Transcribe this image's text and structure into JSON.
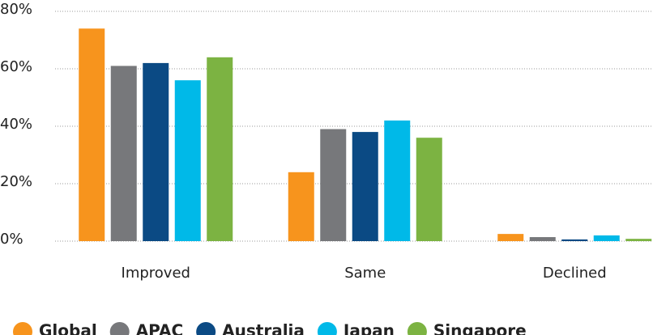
{
  "chart_data": {
    "type": "bar",
    "categories": [
      "Improved",
      "Same",
      "Declined"
    ],
    "series": [
      {
        "name": "Global",
        "color": "#f7941d",
        "values": [
          74,
          24,
          2.5
        ]
      },
      {
        "name": "APAC",
        "color": "#77787b",
        "values": [
          61,
          39,
          1.4
        ]
      },
      {
        "name": "Australia",
        "color": "#0b4a84",
        "values": [
          62,
          38,
          0.6
        ]
      },
      {
        "name": "Japan",
        "color": "#00b9e8",
        "values": [
          56,
          42,
          2
        ]
      },
      {
        "name": "Singapore",
        "color": "#7cb342",
        "values": [
          64,
          36,
          0.8
        ]
      }
    ],
    "ylim": [
      0,
      80
    ],
    "yticks": [
      {
        "value": 0,
        "label": "0%"
      },
      {
        "value": 20,
        "label": "20%"
      },
      {
        "value": 40,
        "label": "40%"
      },
      {
        "value": 60,
        "label": "60%"
      },
      {
        "value": 80,
        "label": "80%"
      }
    ],
    "grid": true,
    "legend": "bottom"
  }
}
